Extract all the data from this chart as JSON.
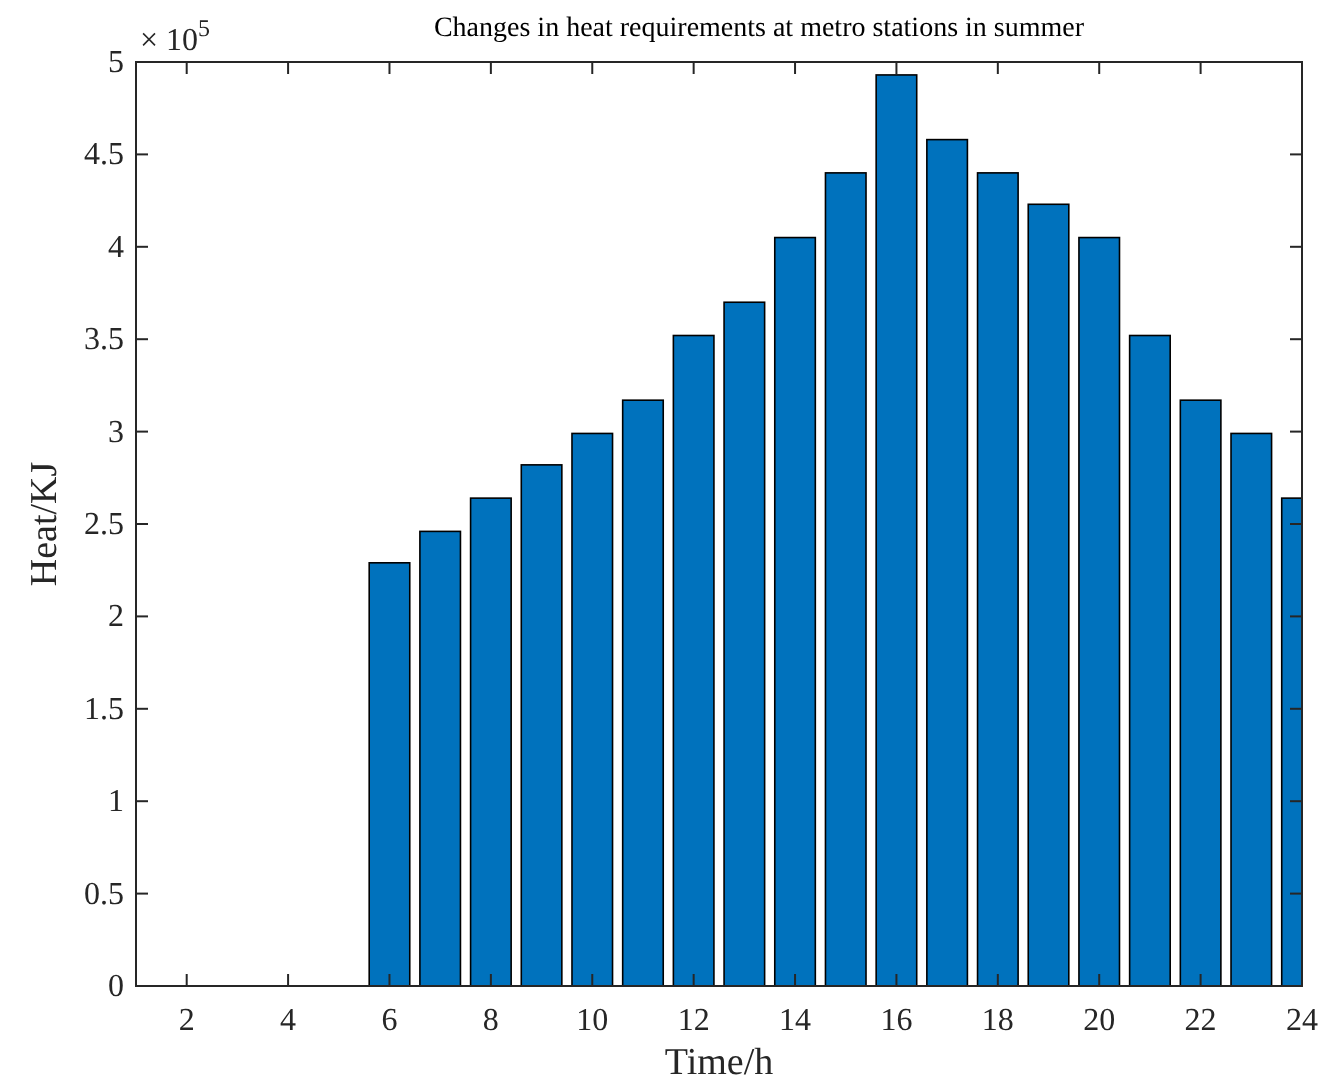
{
  "chart_data": {
    "type": "bar",
    "title": "Changes in heat requirements at metro stations in summer",
    "xlabel": "Time/h",
    "ylabel": "Heat/KJ",
    "annotations": [
      "× 10$^{5}$"
    ],
    "x": [
      1,
      2,
      3,
      4,
      5,
      6,
      7,
      8,
      9,
      10,
      11,
      12,
      13,
      14,
      15,
      16,
      17,
      18,
      19,
      20,
      21,
      22,
      23,
      24
    ],
    "values": [
      0,
      0,
      0,
      0,
      0,
      2.29,
      2.46,
      2.64,
      2.82,
      2.99,
      3.17,
      3.52,
      3.7,
      4.05,
      4.4,
      4.93,
      4.58,
      4.4,
      4.23,
      4.05,
      3.52,
      3.17,
      2.99,
      2.64
    ],
    "color": "#0072bd",
    "xlim": [
      1,
      24
    ],
    "xticks": [
      2,
      4,
      6,
      8,
      10,
      12,
      14,
      16,
      18,
      20,
      22,
      24
    ],
    "ylim": [
      0,
      5
    ],
    "yticks": [
      0,
      0.5,
      1,
      1.5,
      2,
      2.5,
      3,
      3.5,
      4,
      4.5,
      5
    ],
    "grid": false
  }
}
